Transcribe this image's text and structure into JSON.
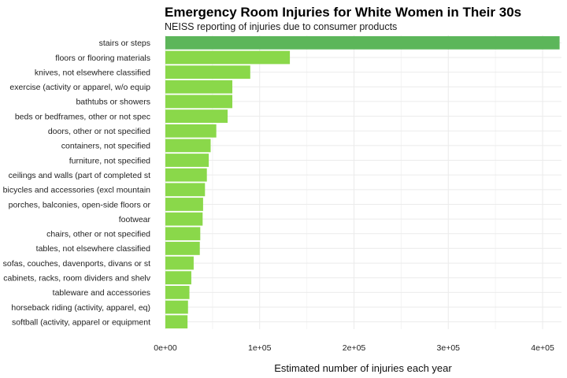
{
  "chart_data": {
    "type": "bar",
    "orientation": "horizontal",
    "title": "Emergency Room Injuries for White Women in Their 30s",
    "subtitle": "NEISS reporting of injuries due to consumer products",
    "xlabel": "Estimated number of injuries each year",
    "ylabel": "",
    "xlim": [
      0,
      420000
    ],
    "x_ticks": [
      0,
      100000,
      200000,
      300000,
      400000
    ],
    "x_tick_labels": [
      "0e+00",
      "1e+05",
      "2e+05",
      "3e+05",
      "4e+05"
    ],
    "grid": true,
    "categories": [
      "stairs or steps",
      "floors or flooring materials",
      "knives, not elsewhere classified",
      "exercise (activity or apparel, w/o equip",
      "bathtubs or showers",
      "beds or bedframes, other or not spec",
      "doors, other or not specified",
      "containers, not specified",
      "furniture, not specified",
      "ceilings and walls (part of completed st",
      "bicycles and accessories (excl mountain",
      "porches, balconies, open-side floors or",
      "footwear",
      "chairs, other or not specified",
      "tables, not elsewhere classified",
      "sofas, couches, davenports, divans or st",
      "cabinets, racks, room dividers and shelv",
      "tableware and accessories",
      "horseback riding (activity, apparel, eq)",
      "softball (activity, apparel or equipment"
    ],
    "values": [
      418000,
      132000,
      90000,
      71000,
      71000,
      66000,
      54000,
      48000,
      46000,
      44000,
      42000,
      40000,
      39500,
      37000,
      36500,
      30000,
      27500,
      25500,
      24000,
      23500
    ],
    "colors": {
      "top_bar": "#5cb65a",
      "bar": "#8ad84a"
    }
  }
}
